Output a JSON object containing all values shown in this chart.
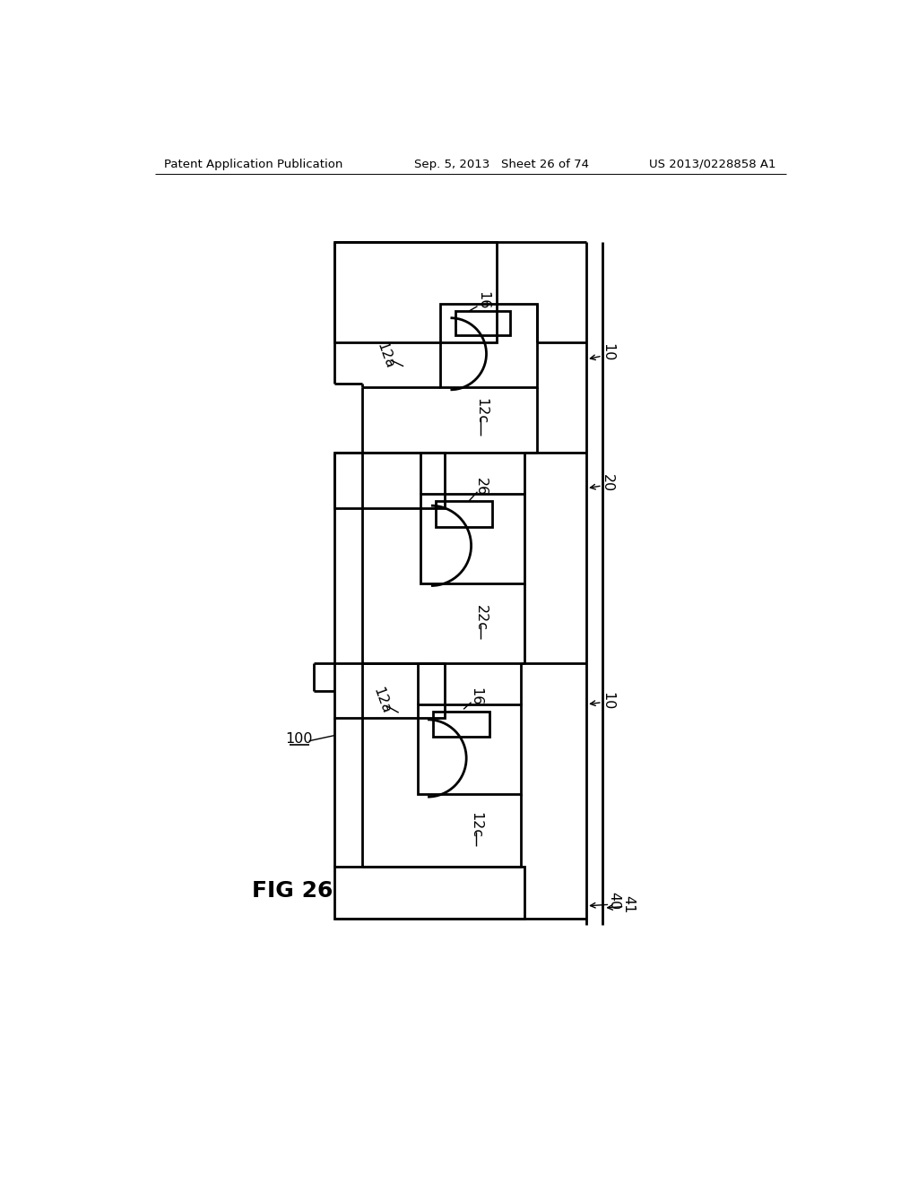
{
  "bg_color": "#ffffff",
  "line_color": "#000000",
  "header_left": "Patent Application Publication",
  "header_mid": "Sep. 5, 2013   Sheet 26 of 74",
  "header_right": "US 2013/0228858 A1",
  "fig_label": "FIG 26",
  "lw_thin": 1.2,
  "lw_thick": 2.0
}
